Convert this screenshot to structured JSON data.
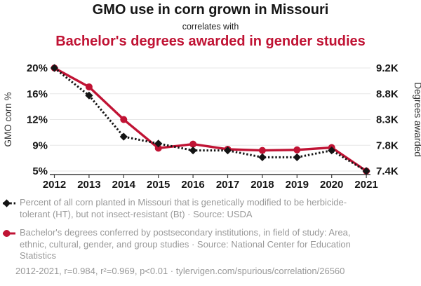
{
  "header": {
    "title": "GMO use in corn grown in Missouri",
    "connector": "correlates with",
    "subtitle": "Bachelor's degrees awarded in gender studies"
  },
  "colors": {
    "accent_red": "#c01334",
    "series_black": "#141414",
    "muted_text": "#999999",
    "gridline": "#e7e7e7",
    "axis_line": "#3c3c3c"
  },
  "chart_data": {
    "type": "line",
    "x": [
      2012,
      2013,
      2014,
      2015,
      2016,
      2017,
      2018,
      2019,
      2020,
      2021
    ],
    "x_tick_labels": [
      "2012",
      "2013",
      "2014",
      "2015",
      "2016",
      "2017",
      "2018",
      "2019",
      "2020",
      "2021"
    ],
    "grid": "horizontal",
    "legend_position": "bottom",
    "left_axis": {
      "label": "GMO corn %",
      "tick_labels": [
        "20%",
        "16%",
        "12%",
        "9%",
        "5%"
      ],
      "range": [
        5,
        20
      ]
    },
    "right_axis": {
      "label": "Degrees awarded",
      "tick_labels": [
        "9.2K",
        "8.8K",
        "8.3K",
        "7.8K",
        "7.4K"
      ],
      "range": [
        7400,
        9200
      ]
    },
    "series": [
      {
        "name": "GMO corn %",
        "legend_label": "Percent of all corn planted in Missouri that is genetically modified to be herbicide-tolerant (HT), but not insect-resistant (Bt) · Source: USDA",
        "axis": "left",
        "line_style": "dashed",
        "marker": "diamond",
        "color_key": "series_black",
        "values": [
          20,
          16,
          10,
          9,
          8,
          8,
          7,
          7,
          8,
          5
        ]
      },
      {
        "name": "Degrees awarded",
        "legend_label": "Bachelor's degrees conferred by postsecondary institutions, in field of study: Area, ethnic, cultural, gender, and group studies · Source: National Center for Education Statistics",
        "axis": "right",
        "line_style": "solid",
        "marker": "circle",
        "color_key": "accent_red",
        "values": [
          9200,
          8870,
          8300,
          7800,
          7870,
          7780,
          7760,
          7770,
          7810,
          7400
        ]
      }
    ]
  },
  "footer": {
    "text": "2012-2021, r=0.984, r²=0.969, p<0.01 · tylervigen.com/spurious/correlation/26560"
  }
}
